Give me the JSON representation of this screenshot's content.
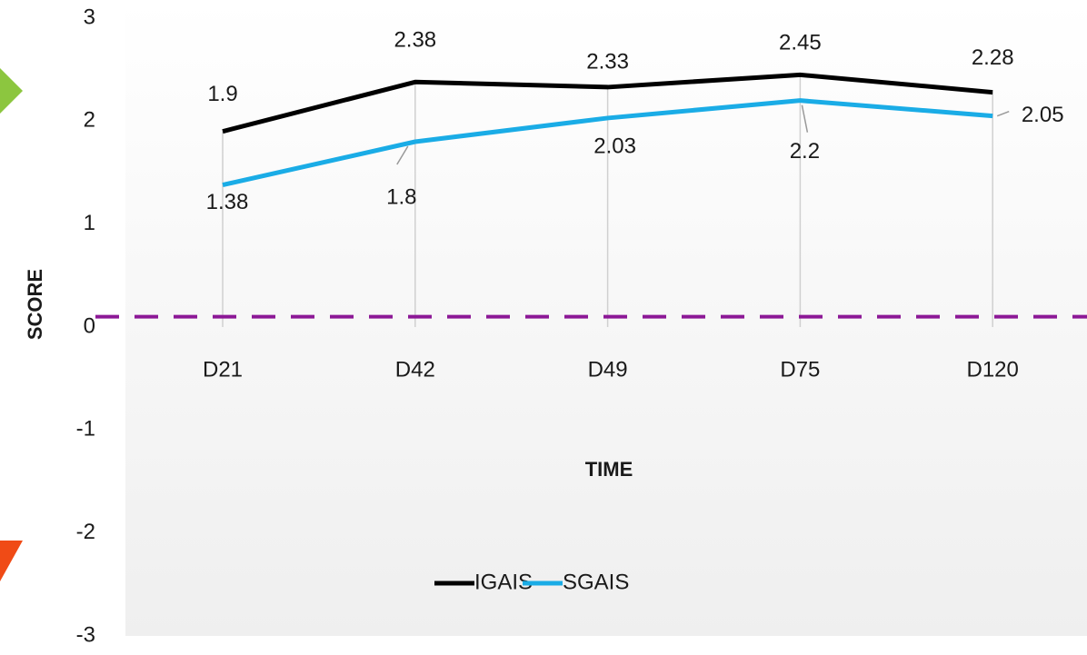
{
  "chart_data": {
    "type": "line",
    "x_label": "TIME",
    "y_label": "SCORE",
    "categories": [
      "D21",
      "D42",
      "D49",
      "D75",
      "D120"
    ],
    "series": [
      {
        "name": "IGAIS",
        "color": "#000000",
        "label_color": "#1b2a5c",
        "values": [
          1.9,
          2.38,
          2.33,
          2.45,
          2.28
        ]
      },
      {
        "name": "SGAIS",
        "color": "#1aace6",
        "label_color": "#1a78c0",
        "values": [
          1.38,
          1.8,
          2.03,
          2.2,
          2.05
        ]
      }
    ],
    "ylim": [
      -3,
      3
    ],
    "yticks": [
      -3,
      -2,
      -1,
      0,
      1,
      2,
      3
    ],
    "reference_line": {
      "value": 0.1,
      "color": "#8c1896"
    },
    "legend": "bottom"
  }
}
